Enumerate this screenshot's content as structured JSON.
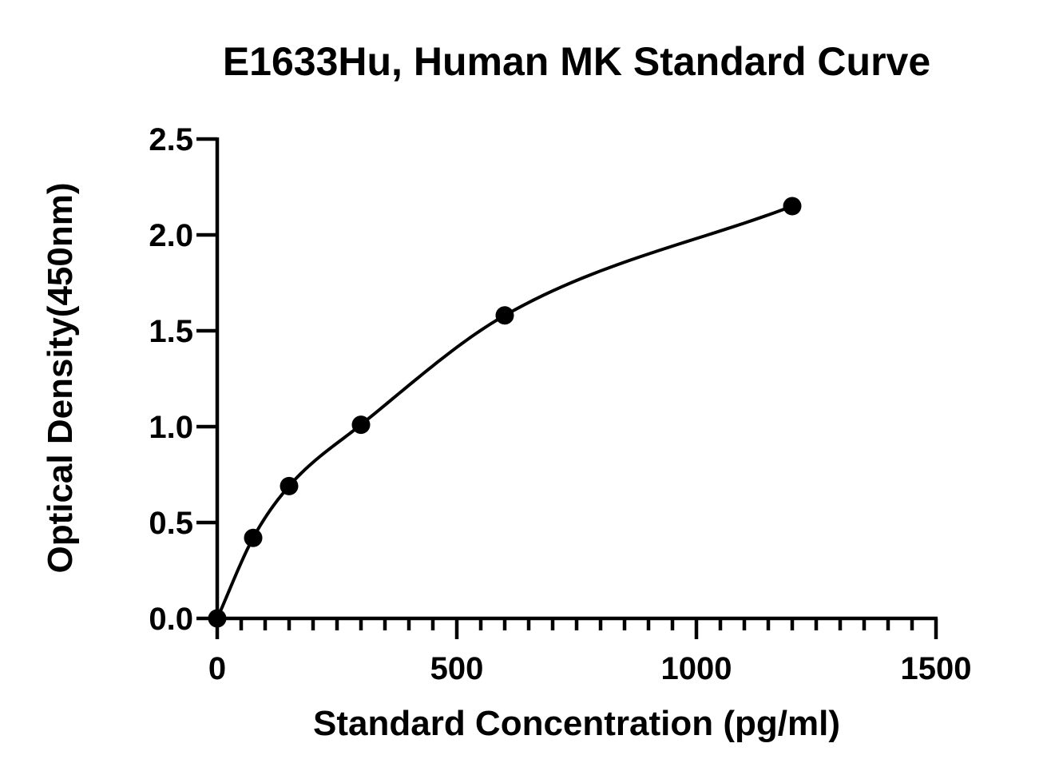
{
  "chart_data": {
    "type": "scatter",
    "title": "E1633Hu, Human MK Standard Curve",
    "xlabel": "Standard Concentration (pg/ml)",
    "ylabel": "Optical Density(450nm)",
    "xlim": [
      0,
      1500
    ],
    "ylim": [
      0,
      2.5
    ],
    "x_ticks": [
      {
        "value": 0,
        "label": "0"
      },
      {
        "value": 500,
        "label": "500"
      },
      {
        "value": 1000,
        "label": "1000"
      },
      {
        "value": 1500,
        "label": "1500"
      }
    ],
    "x_minor_step": 50,
    "y_ticks": [
      {
        "value": 0,
        "label": "0.0"
      },
      {
        "value": 0.5,
        "label": "0.5"
      },
      {
        "value": 1.0,
        "label": "1.0"
      },
      {
        "value": 1.5,
        "label": "1.5"
      },
      {
        "value": 2.0,
        "label": "2.0"
      },
      {
        "value": 2.5,
        "label": "2.5"
      }
    ],
    "grid": false,
    "legend": "none",
    "series": [
      {
        "points": [
          {
            "x": 0,
            "y": 0.0
          },
          {
            "x": 75,
            "y": 0.42
          },
          {
            "x": 150,
            "y": 0.69
          },
          {
            "x": 300,
            "y": 1.01
          },
          {
            "x": 600,
            "y": 1.58
          },
          {
            "x": 1200,
            "y": 2.15
          }
        ],
        "fit_curve": true,
        "color": "#000000"
      }
    ]
  }
}
